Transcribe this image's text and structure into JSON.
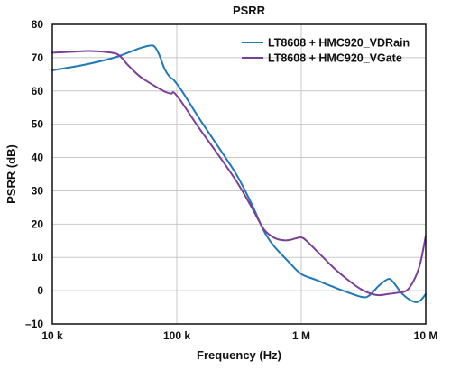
{
  "chart_data": {
    "type": "line",
    "title": "PSRR",
    "xlabel": "Frequency (Hz)",
    "ylabel": "PSRR (dB)",
    "x_scale": "log",
    "xlim": [
      10000,
      10000000
    ],
    "ylim": [
      -10,
      80
    ],
    "grid": true,
    "legend_position": "top-right",
    "x_ticks": [
      {
        "value": 10000,
        "label": "10 k"
      },
      {
        "value": 100000,
        "label": "100 k"
      },
      {
        "value": 1000000,
        "label": "1 M"
      },
      {
        "value": 10000000,
        "label": "10 M"
      }
    ],
    "y_ticks": [
      {
        "value": 80,
        "label": "80"
      },
      {
        "value": 70,
        "label": "70"
      },
      {
        "value": 60,
        "label": "60"
      },
      {
        "value": 50,
        "label": "50"
      },
      {
        "value": 40,
        "label": "40"
      },
      {
        "value": 30,
        "label": "30"
      },
      {
        "value": 20,
        "label": "20"
      },
      {
        "value": 10,
        "label": "10"
      },
      {
        "value": 0,
        "label": "0"
      },
      {
        "value": -10,
        "label": "–10"
      }
    ],
    "series": [
      {
        "name": "LT8608 + HMC920_VDRain",
        "color": "#1f78b8",
        "points": [
          [
            10000,
            66.2
          ],
          [
            15000,
            67.3
          ],
          [
            20000,
            68.2
          ],
          [
            30000,
            69.8
          ],
          [
            40000,
            71.4
          ],
          [
            50000,
            72.8
          ],
          [
            60000,
            73.6
          ],
          [
            66000,
            73.4
          ],
          [
            72000,
            71.0
          ],
          [
            80000,
            66.5
          ],
          [
            88000,
            64.2
          ],
          [
            95000,
            63.2
          ],
          [
            110000,
            60.0
          ],
          [
            150000,
            52.0
          ],
          [
            200000,
            45.0
          ],
          [
            300000,
            35.0
          ],
          [
            400000,
            26.0
          ],
          [
            500000,
            18.0
          ],
          [
            600000,
            13.5
          ],
          [
            800000,
            8.5
          ],
          [
            1000000,
            5.0
          ],
          [
            1300000,
            3.3
          ],
          [
            2000000,
            0.5
          ],
          [
            3000000,
            -1.8
          ],
          [
            3500000,
            -1.5
          ],
          [
            4200000,
            1.5
          ],
          [
            5000000,
            3.5
          ],
          [
            5500000,
            2.5
          ],
          [
            6500000,
            -1.0
          ],
          [
            8000000,
            -3.3
          ],
          [
            9000000,
            -3.0
          ],
          [
            10000000,
            -1.0
          ]
        ]
      },
      {
        "name": "LT8608 + HMC920_VGate",
        "color": "#7b3f98",
        "points": [
          [
            10000,
            71.5
          ],
          [
            15000,
            71.8
          ],
          [
            20000,
            72.0
          ],
          [
            30000,
            71.5
          ],
          [
            35000,
            70.5
          ],
          [
            40000,
            68.0
          ],
          [
            50000,
            64.5
          ],
          [
            60000,
            62.5
          ],
          [
            70000,
            61.0
          ],
          [
            80000,
            59.8
          ],
          [
            90000,
            59.2
          ],
          [
            95000,
            59.5
          ],
          [
            110000,
            56.5
          ],
          [
            150000,
            49.0
          ],
          [
            200000,
            42.5
          ],
          [
            300000,
            33.0
          ],
          [
            400000,
            25.0
          ],
          [
            500000,
            18.5
          ],
          [
            600000,
            16.0
          ],
          [
            700000,
            15.2
          ],
          [
            800000,
            15.2
          ],
          [
            900000,
            15.7
          ],
          [
            1000000,
            16.0
          ],
          [
            1100000,
            15.0
          ],
          [
            1500000,
            10.0
          ],
          [
            2000000,
            5.5
          ],
          [
            3000000,
            0.5
          ],
          [
            4000000,
            -1.3
          ],
          [
            5000000,
            -1.0
          ],
          [
            6000000,
            -0.6
          ],
          [
            7000000,
            0.0
          ],
          [
            8000000,
            3.0
          ],
          [
            9000000,
            8.0
          ],
          [
            10000000,
            16.5
          ]
        ]
      }
    ]
  }
}
